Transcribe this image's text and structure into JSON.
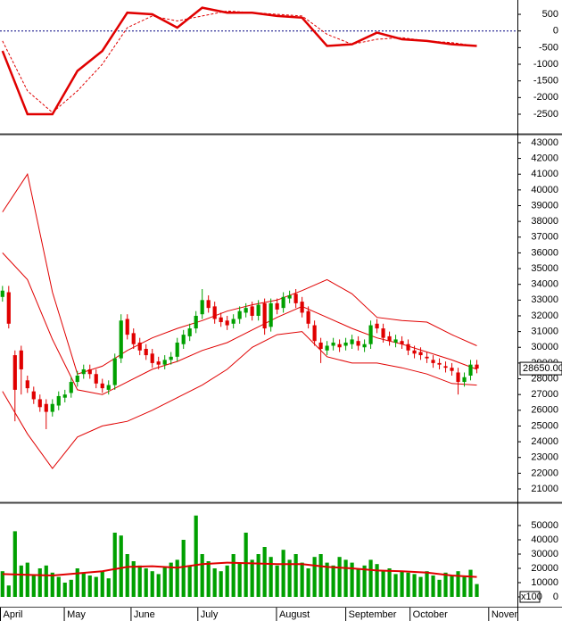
{
  "chart_data": [
    {
      "type": "line",
      "ylim": [
        -3090,
        930
      ],
      "yticks": [
        500,
        0,
        -500,
        -1000,
        -1500,
        -2000,
        -2500
      ],
      "reference_line": 0,
      "series": [
        {
          "color": "#e00000",
          "style": "solid",
          "x": [
            0,
            4,
            8,
            12,
            16,
            20,
            24,
            28,
            32,
            36,
            40,
            44,
            48,
            52,
            56,
            60,
            64,
            68,
            72,
            76
          ],
          "values": [
            -600,
            -2500,
            -2500,
            -1200,
            -600,
            550,
            500,
            100,
            700,
            550,
            550,
            450,
            400,
            -450,
            -400,
            -50,
            -250,
            -300,
            -400,
            -450
          ]
        },
        {
          "color": "#e00000",
          "style": "dashed",
          "x": [
            0,
            4,
            8,
            12,
            16,
            20,
            24,
            28,
            32,
            36,
            40,
            44,
            48,
            52,
            56,
            60,
            64,
            68,
            72,
            76
          ],
          "values": [
            -300,
            -1800,
            -2450,
            -1800,
            -1000,
            100,
            450,
            300,
            450,
            600,
            550,
            500,
            450,
            -100,
            -400,
            -250,
            -200,
            -300,
            -350,
            -450
          ]
        }
      ]
    },
    {
      "type": "candlestick",
      "ylim": [
        20150,
        43450
      ],
      "yticks": [
        21000,
        22000,
        23000,
        24000,
        25000,
        26000,
        27000,
        28000,
        29000,
        30000,
        31000,
        32000,
        33000,
        34000,
        35000,
        36000,
        37000,
        38000,
        39000,
        40000,
        41000,
        42000,
        43000
      ],
      "up_color": "#00a000",
      "down_color": "#e00000",
      "open": [
        33200,
        33500,
        29500,
        29800,
        27900,
        27200,
        26700,
        26400,
        25900,
        26300,
        26800,
        27100,
        27800,
        28300,
        28600,
        28300,
        27700,
        27300,
        27600,
        29300,
        31800,
        30900,
        30300,
        29900,
        29600,
        29100,
        28900,
        29200,
        29400,
        30200,
        30700,
        31200,
        32100,
        33000,
        32600,
        31900,
        31700,
        31500,
        31800,
        32200,
        32600,
        32000,
        32800,
        31300,
        32800,
        32500,
        33100,
        33400,
        32900,
        32300,
        31400,
        30300,
        29800,
        30100,
        30200,
        30100,
        30200,
        30400,
        30000,
        30200,
        31500,
        31200,
        30700,
        30300,
        30400,
        30200,
        29800,
        29700,
        29400,
        29200,
        29000,
        28800,
        28700,
        28400,
        27800,
        28200,
        28900
      ],
      "high": [
        33900,
        33900,
        29800,
        30100,
        28200,
        27500,
        27000,
        26700,
        26700,
        27200,
        27300,
        28100,
        28500,
        28900,
        28900,
        28600,
        28000,
        27900,
        29600,
        32100,
        32100,
        31200,
        30600,
        30200,
        29900,
        29400,
        29500,
        29700,
        30600,
        31100,
        31500,
        32300,
        33700,
        33300,
        32900,
        32200,
        32000,
        32100,
        32600,
        32800,
        32900,
        33000,
        33100,
        33100,
        33100,
        33500,
        33600,
        33700,
        33200,
        32600,
        31700,
        30600,
        30400,
        30600,
        30500,
        30600,
        30800,
        30700,
        30500,
        31700,
        31800,
        31500,
        31000,
        30800,
        30700,
        30500,
        30100,
        30000,
        29700,
        29500,
        29300,
        29100,
        29000,
        28700,
        28400,
        29200,
        29200
      ],
      "low": [
        32900,
        31200,
        25300,
        27000,
        27100,
        26400,
        25900,
        24800,
        25600,
        26000,
        26500,
        26800,
        27500,
        28000,
        28000,
        27400,
        27100,
        27000,
        27300,
        29000,
        30500,
        29900,
        29500,
        29200,
        28700,
        28600,
        28600,
        28900,
        29100,
        29900,
        30400,
        30900,
        31800,
        32200,
        31500,
        31300,
        31100,
        31200,
        31500,
        31900,
        31700,
        31700,
        30800,
        31000,
        32100,
        32200,
        32800,
        32500,
        31900,
        31200,
        30100,
        29000,
        29500,
        29800,
        29700,
        29800,
        29900,
        29800,
        29700,
        29900,
        30900,
        30300,
        30100,
        30000,
        29900,
        29500,
        29300,
        29200,
        29000,
        28700,
        28600,
        28400,
        28200,
        27000,
        27500,
        27900,
        28350
      ],
      "close": [
        33600,
        31500,
        27300,
        28600,
        27400,
        26700,
        26200,
        25900,
        26400,
        26900,
        27000,
        27800,
        28200,
        28600,
        28300,
        27700,
        27400,
        27600,
        29300,
        31700,
        30800,
        30200,
        29800,
        29500,
        29000,
        28900,
        29200,
        29400,
        30300,
        30800,
        31200,
        32000,
        33000,
        32500,
        31800,
        31600,
        31400,
        31800,
        32300,
        32500,
        32000,
        32700,
        31200,
        32800,
        32400,
        33200,
        33300,
        32800,
        32200,
        31500,
        30400,
        29900,
        30100,
        30300,
        30000,
        30300,
        30500,
        30100,
        30200,
        31400,
        31200,
        30600,
        30400,
        30500,
        30200,
        29800,
        29600,
        29500,
        29300,
        29000,
        28900,
        28700,
        28500,
        27800,
        28100,
        28900,
        28650
      ],
      "bands": [
        {
          "color": "#e00000",
          "x": [
            0,
            4,
            8,
            12,
            16,
            20,
            24,
            28,
            32,
            36,
            40,
            44,
            48,
            52,
            56,
            60,
            64,
            68,
            72,
            76
          ],
          "values": [
            38600,
            41000,
            33500,
            28300,
            28800,
            29800,
            30600,
            31200,
            31700,
            32300,
            32700,
            33000,
            33600,
            34300,
            33400,
            31900,
            31700,
            31600,
            30800,
            30100
          ]
        },
        {
          "color": "#e00000",
          "x": [
            0,
            4,
            8,
            12,
            16,
            20,
            24,
            28,
            32,
            36,
            40,
            44,
            48,
            52,
            56,
            60,
            64,
            68,
            72,
            76
          ],
          "values": [
            36000,
            34300,
            30500,
            27300,
            27000,
            27800,
            28600,
            29100,
            29800,
            30300,
            31100,
            31900,
            32600,
            31900,
            31200,
            30600,
            30200,
            29700,
            29200,
            28600
          ]
        },
        {
          "color": "#e00000",
          "x": [
            0,
            4,
            8,
            12,
            16,
            20,
            24,
            28,
            32,
            36,
            40,
            44,
            48,
            52,
            56,
            60,
            64,
            68,
            72,
            76
          ],
          "values": [
            27200,
            24500,
            22300,
            24300,
            25000,
            25300,
            26000,
            26800,
            27600,
            28600,
            30000,
            30800,
            31000,
            29400,
            29000,
            29000,
            28700,
            28300,
            27700,
            27600
          ]
        }
      ],
      "last_price": {
        "value": 28650,
        "label": "28650.00"
      }
    },
    {
      "type": "bar",
      "ylim": [
        0,
        65000
      ],
      "yticks": [
        0,
        10000,
        20000,
        30000,
        40000,
        50000
      ],
      "color": "#00a000",
      "unit_label": "x100",
      "values": [
        18000,
        8000,
        46000,
        22000,
        24000,
        15000,
        20000,
        22000,
        17000,
        14000,
        10000,
        12000,
        20000,
        17000,
        15000,
        14000,
        18000,
        13000,
        45000,
        43000,
        30000,
        25000,
        22000,
        20000,
        18000,
        16000,
        21000,
        24000,
        26000,
        40000,
        22000,
        57000,
        30000,
        25000,
        20000,
        18000,
        22000,
        30000,
        24000,
        45000,
        26000,
        30000,
        35000,
        28000,
        22000,
        33000,
        26000,
        30000,
        24000,
        20000,
        28000,
        30000,
        24000,
        22000,
        28000,
        26000,
        24000,
        20000,
        22000,
        26000,
        23000,
        18000,
        20000,
        16000,
        18000,
        17000,
        16000,
        14000,
        18000,
        15000,
        12000,
        17000,
        15000,
        18000,
        14000,
        19000,
        9000
      ],
      "series": [
        {
          "color": "#e00000",
          "x": [
            0,
            4,
            8,
            12,
            16,
            20,
            24,
            28,
            32,
            36,
            40,
            44,
            48,
            52,
            56,
            60,
            64,
            68,
            72,
            76
          ],
          "values": [
            16000,
            15500,
            15000,
            16500,
            18000,
            21000,
            21500,
            20500,
            23000,
            24000,
            23500,
            23000,
            23000,
            21000,
            20000,
            18500,
            18000,
            17000,
            15000,
            14000
          ]
        }
      ],
      "xlim": [
        -0.4,
        82.5
      ],
      "xticks": [
        {
          "value": -0.4,
          "label": "April"
        },
        {
          "value": 9.9,
          "label": "May"
        },
        {
          "value": 20.6,
          "label": "June"
        },
        {
          "value": 31.3,
          "label": "July"
        },
        {
          "value": 43.9,
          "label": "August"
        },
        {
          "value": 55,
          "label": "September"
        },
        {
          "value": 65.3,
          "label": "October"
        },
        {
          "value": 77.9,
          "label": "November"
        }
      ]
    }
  ]
}
